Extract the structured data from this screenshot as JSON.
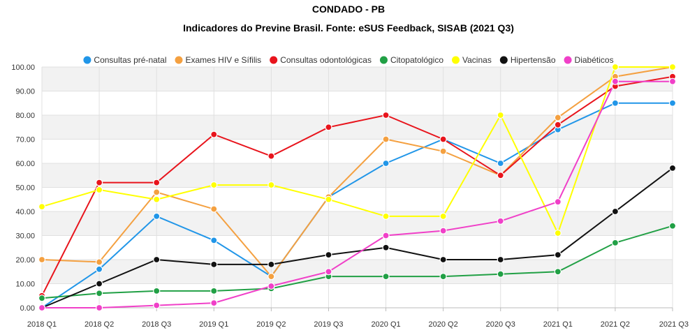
{
  "header": {
    "title": "CONDADO - PB",
    "subtitle": "Indicadores do Previne Brasil. Fonte: eSUS Feedback, SISAB (2021 Q3)"
  },
  "chart_data": {
    "type": "line",
    "title": "CONDADO - PB",
    "subtitle": "Indicadores do Previne Brasil. Fonte: eSUS Feedback, SISAB (2021 Q3)",
    "x": [
      "2018 Q1",
      "2018 Q2",
      "2018 Q3",
      "2019 Q1",
      "2019 Q2",
      "2019 Q3",
      "2020 Q1",
      "2020 Q2",
      "2020 Q3",
      "2021 Q1",
      "2021 Q2",
      "2021 Q3"
    ],
    "ylim": [
      0,
      100
    ],
    "yticks": [
      "0.00",
      "10.00",
      "20.00",
      "30.00",
      "40.00",
      "50.00",
      "60.00",
      "70.00",
      "80.00",
      "90.00",
      "100.00"
    ],
    "grid": true,
    "legend_position": "top",
    "series": [
      {
        "name": "Consultas pré-natal",
        "color": "#2196e8",
        "values": [
          0,
          16,
          38,
          28,
          13,
          46,
          60,
          70,
          60,
          74,
          85,
          85
        ]
      },
      {
        "name": "Exames HIV e Sífilis",
        "color": "#f4a040",
        "values": [
          20,
          19,
          48,
          41,
          13,
          46,
          70,
          65,
          55,
          79,
          96,
          100
        ]
      },
      {
        "name": "Consultas odontológicas",
        "color": "#e8141c",
        "values": [
          5,
          52,
          52,
          72,
          63,
          75,
          80,
          70,
          55,
          76,
          92,
          96
        ]
      },
      {
        "name": "Citopatológico",
        "color": "#21a045",
        "values": [
          4,
          6,
          7,
          7,
          8,
          13,
          13,
          13,
          14,
          15,
          27,
          34
        ]
      },
      {
        "name": "Vacinas",
        "color": "#ffff00",
        "values": [
          42,
          49,
          45,
          51,
          51,
          45,
          38,
          38,
          80,
          31,
          100,
          100
        ]
      },
      {
        "name": "Hipertensão",
        "color": "#111111",
        "values": [
          0,
          10,
          20,
          18,
          18,
          22,
          25,
          20,
          20,
          22,
          40,
          58
        ]
      },
      {
        "name": "Diabéticos",
        "color": "#f040c8",
        "values": [
          0,
          0,
          1,
          2,
          9,
          15,
          30,
          32,
          36,
          44,
          94,
          94
        ]
      }
    ]
  }
}
